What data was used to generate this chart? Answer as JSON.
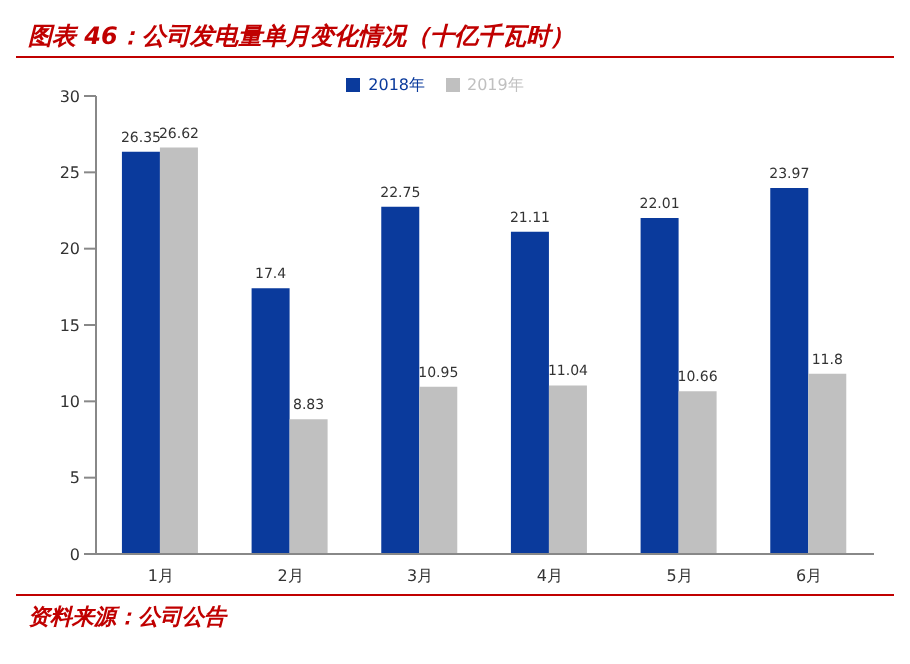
{
  "chart_data": {
    "type": "bar",
    "title": "图表 46：公司发电量单月变化情况（十亿千瓦时）",
    "categories": [
      "1月",
      "2月",
      "3月",
      "4月",
      "5月",
      "6月"
    ],
    "series": [
      {
        "name": "2018年",
        "color": "#0a3a9c",
        "values": [
          26.35,
          17.4,
          22.75,
          21.11,
          22.01,
          23.97
        ]
      },
      {
        "name": "2019年",
        "color": "#c0c0c0",
        "values": [
          26.62,
          8.83,
          10.95,
          11.04,
          10.66,
          11.8
        ]
      }
    ],
    "ylim": [
      0,
      30
    ],
    "yticks": [
      0,
      5,
      10,
      15,
      20,
      25,
      30
    ],
    "grid": false,
    "legend": "top",
    "data_labels": true,
    "annotations": [
      "资料来源：公司公告"
    ]
  }
}
